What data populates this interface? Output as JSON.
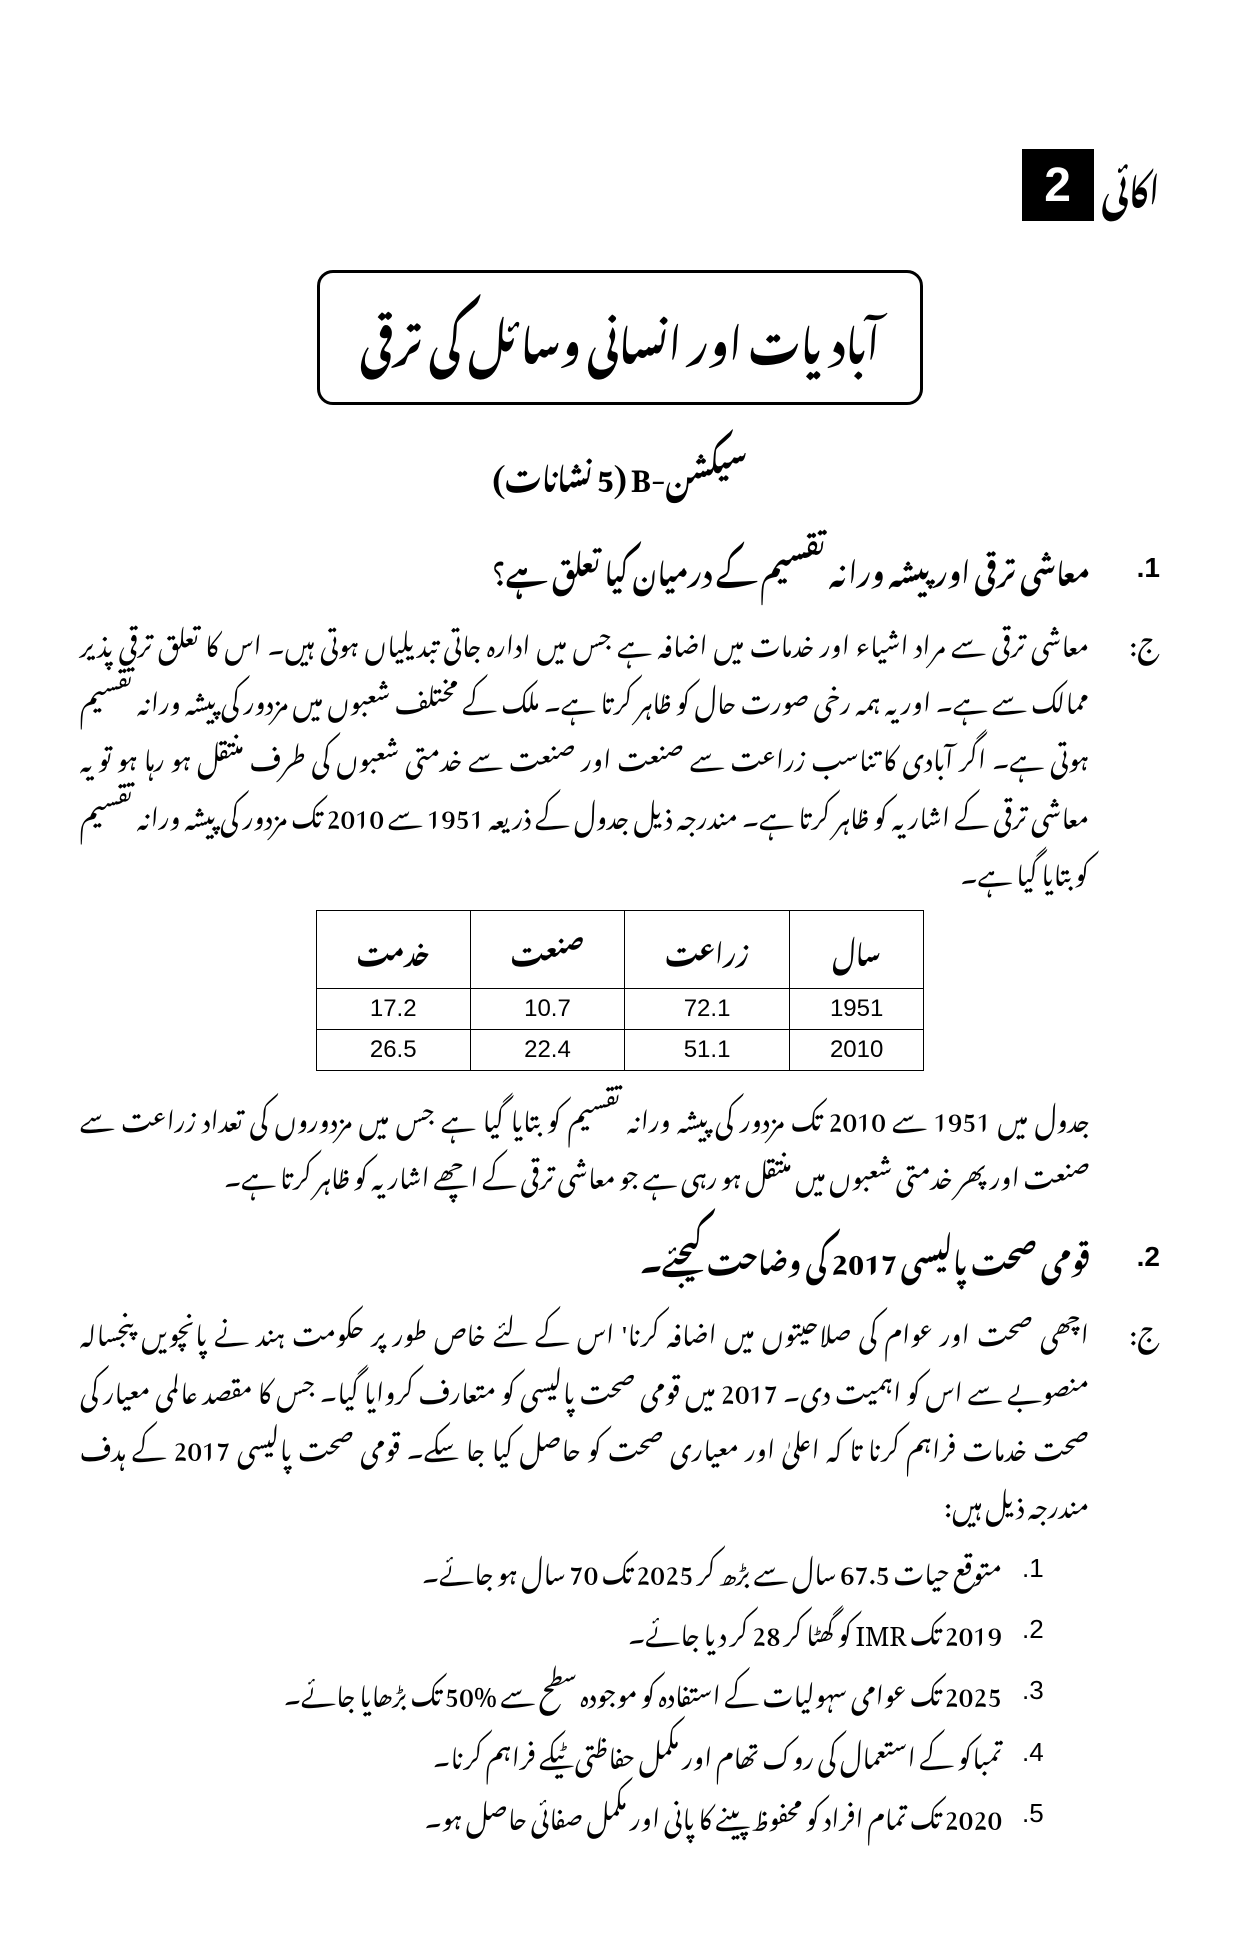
{
  "unit": {
    "label": "اکائی",
    "number": "2"
  },
  "chapter_title": "آبادیات اور انسانی وسائل کی ترقی",
  "section_header": "سیکشن-B (5 نشانات)",
  "q1": {
    "num": ".1",
    "text": "معاشی ترقی اور پیشہ ورانہ تقسیم کے درمیان کیا تعلق ہے؟",
    "a_label": "ج:",
    "a_body": "معاشی ترقی سے مراد اشیاء اور خدمات میں اضافہ ہے جس میں ادارہ جاتی تبدیلیاں ہوتی ہیں۔ اس کا تعلق ترقی پذیر ممالک سے ہے۔ اور یہ ہمہ رخی صورت حال کو ظاہر کرتا ہے۔ ملک کے مختلف شعبوں میں مزدور کی پیشہ ورانہ تقسیم ہوتی ہے۔ اگر آبادی کا تناسب زراعت سے صنعت اور صنعت سے خدمتی شعبوں کی طرف منتقل ہو رہا ہو تو یہ معاشی ترقی کے اشاریہ کو ظاہر کرتا ہے۔ مندرجہ ذیل جدول کے ذریعہ 1951 سے 2010 تک مزدور کی پیشہ ورانہ تقسیم کو بتایا گیا ہے۔",
    "table": {
      "headers": [
        "سال",
        "زراعت",
        "صنعت",
        "خدمت"
      ],
      "rows": [
        [
          "1951",
          "72.1",
          "10.7",
          "17.2"
        ],
        [
          "2010",
          "51.1",
          "22.4",
          "26.5"
        ]
      ]
    },
    "post_table": "جدول میں 1951 سے 2010 تک مزدور کی پیشہ ورانہ تقسیم کو بتایا گیا ہے جس میں مزدوروں کی تعداد زراعت سے صنعت اور پھر خدمتی شعبوں میں منتقل ہو رہی ہے جو معاشی ترقی کے اچھے اشاریہ کو ظاہر کرتا ہے۔"
  },
  "q2": {
    "num": ".2",
    "text": "قومی صحت پالیسی 2017 کی وضاحت کیجئے۔",
    "a_label": "ج:",
    "a_body": "اچھی صحت اور عوام کی صلاحیتوں میں اضافہ کرنا' اس کے لئے خاص طور پر حکومت ہند نے پانچویں پنجسالہ منصوبے سے اس کو اہمیت دی۔ 2017 میں قومی صحت پالیسی کو متعارف کروایا گیا۔ جس کا مقصد عالمی معیار کی صحت خدمات فراہم کرنا تا کہ اعلیٰ اور معیاری صحت کو حاصل کیا جا سکے۔ قومی صحت پالیسی 2017 کے ہدف مندرجہ ذیل ہیں:",
    "goals": [
      {
        "n": ".1",
        "t": "متوقع حیات 67.5 سال سے بڑھ کر 2025 تک 70 سال ہو جائے۔"
      },
      {
        "n": ".2",
        "t": "2019 تک IMR کو گھٹا کر 28 کر دیا جائے۔"
      },
      {
        "n": ".3",
        "t": "2025 تک عوامی سہولیات کے استفادہ کو موجودہ سطح سے %50 تک بڑھایا جائے۔"
      },
      {
        "n": ".4",
        "t": "تمباکو کے استعمال کی روک تھام اور مکمل حفاظتی ٹیکے فراہم کرنا۔"
      },
      {
        "n": ".5",
        "t": "2020 تک تمام افراد کو محفوظ پینے کا پانی اور مکمل صفائی حاصل ہو۔"
      }
    ]
  }
}
